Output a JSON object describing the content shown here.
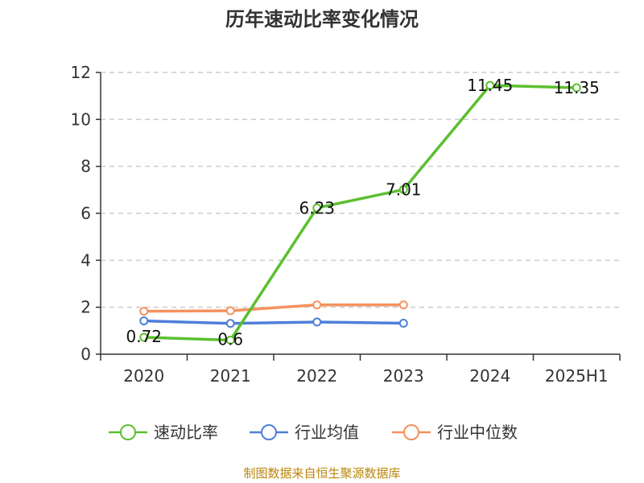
{
  "chart_data": {
    "type": "line",
    "title": "历年速动比率变化情况",
    "categories": [
      "2020",
      "2021",
      "2022",
      "2023",
      "2024",
      "2025H1"
    ],
    "ylim": [
      0,
      12
    ],
    "yticks": [
      "0",
      "2",
      "4",
      "6",
      "8",
      "10",
      "12"
    ],
    "grid": true,
    "legend_position": "bottom",
    "series": [
      {
        "name": "速动比率",
        "color": "#5cbf2f",
        "values": [
          0.72,
          0.6,
          6.23,
          7.01,
          11.45,
          11.35
        ],
        "labels": [
          "0.72",
          "0.6",
          "6.23",
          "7.01",
          "11.45",
          "11.35"
        ]
      },
      {
        "name": "行业均值",
        "color": "#4f7fd9",
        "values": [
          1.42,
          1.31,
          1.37,
          1.32,
          null,
          null
        ]
      },
      {
        "name": "行业中位数",
        "color": "#f4925f",
        "values": [
          1.83,
          1.85,
          2.1,
          2.1,
          null,
          null
        ]
      }
    ]
  },
  "footer": {
    "source": "制图数据来自恒生聚源数据库"
  }
}
